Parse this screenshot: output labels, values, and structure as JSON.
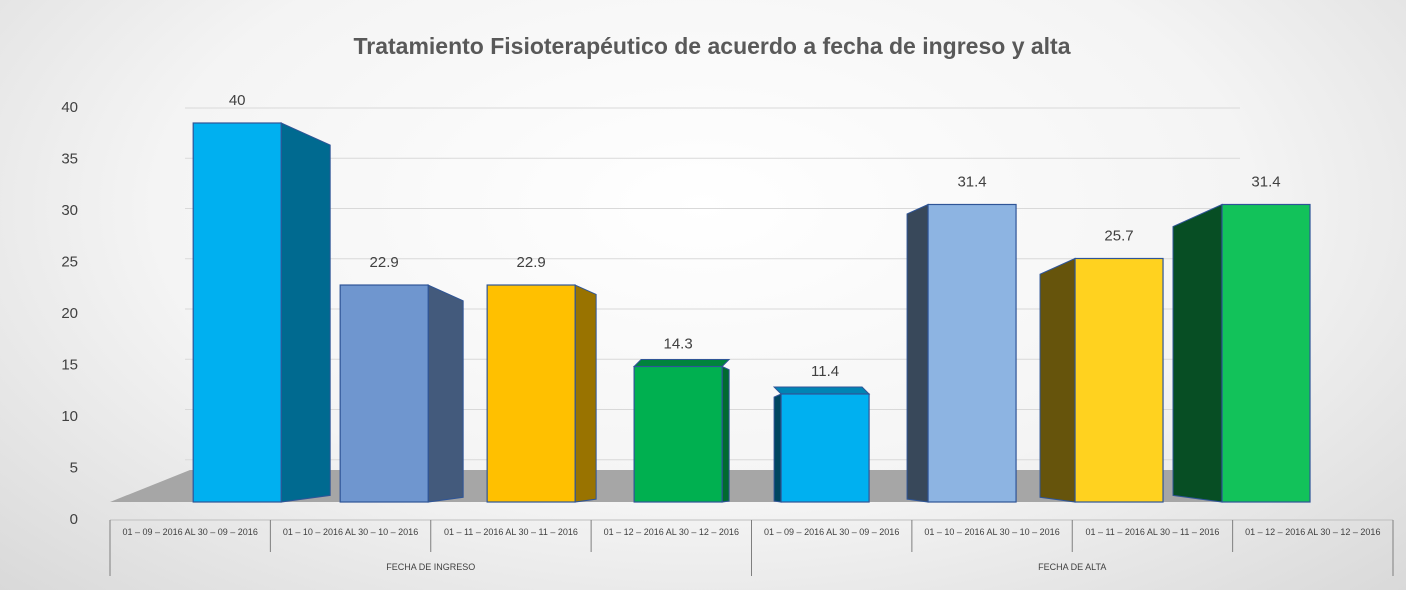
{
  "chart_data": {
    "type": "bar3d",
    "title": "Tratamiento Fisioterapéutico de acuerdo a fecha de ingreso y alta",
    "categories": [
      "01 – 09 – 2016 AL 30 – 09 – 2016",
      "01 – 10 – 2016 AL 30 – 10 – 2016",
      "01 – 11 – 2016 AL 30 – 11 – 2016",
      "01 – 12 – 2016 AL 30 – 12 – 2016",
      "01 – 09 – 2016 AL 30 – 09 – 2016",
      "01 – 10 – 2016 AL 30 – 10 – 2016",
      "01 – 11 – 2016 AL 30 – 11 – 2016",
      "01 – 12 – 2016 AL 30 – 12 – 2016"
    ],
    "groups": [
      {
        "name": "FECHA DE INGRESO",
        "count": 4
      },
      {
        "name": "FECHA DE ALTA",
        "count": 4
      }
    ],
    "values": [
      40,
      22.9,
      22.9,
      14.3,
      11.4,
      31.4,
      25.7,
      31.4
    ],
    "colors": [
      "#00b0f0",
      "#6f96cf",
      "#ffc000",
      "#00b050",
      "#00b0f0",
      "#8db4e2",
      "#ffd21f",
      "#12c25a"
    ],
    "ylim": [
      0,
      40
    ],
    "yticks": [
      0,
      5,
      10,
      15,
      20,
      25,
      30,
      35,
      40
    ],
    "grid": true
  }
}
